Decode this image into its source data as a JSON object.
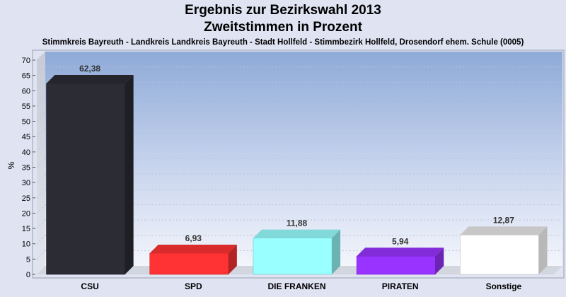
{
  "chart_data": {
    "type": "bar",
    "title": "Ergebnis zur Bezirkswahl 2013",
    "title2": "Zweitstimmen in Prozent",
    "subtitle": "Stimmkreis Bayreuth - Landkreis Landkreis Bayreuth - Stadt Hollfeld - Stimmbezirk Hollfeld, Drosendorf ehem. Schule (0005)",
    "ylabel": "%",
    "ylim": [
      0,
      70
    ],
    "yticks": [
      0,
      5,
      10,
      15,
      20,
      25,
      30,
      35,
      40,
      45,
      50,
      55,
      60,
      65,
      70
    ],
    "categories": [
      "CSU",
      "SPD",
      "DIE FRANKEN",
      "PIRATEN",
      "Sonstige"
    ],
    "values": [
      62.38,
      6.93,
      11.88,
      5.94,
      12.87
    ],
    "value_labels": [
      "62,38",
      "6,93",
      "11,88",
      "5,94",
      "12,87"
    ],
    "colors": [
      "#2b2c34",
      "#ff3333",
      "#99ffff",
      "#9933ff",
      "#ffffff"
    ],
    "grid": true
  }
}
